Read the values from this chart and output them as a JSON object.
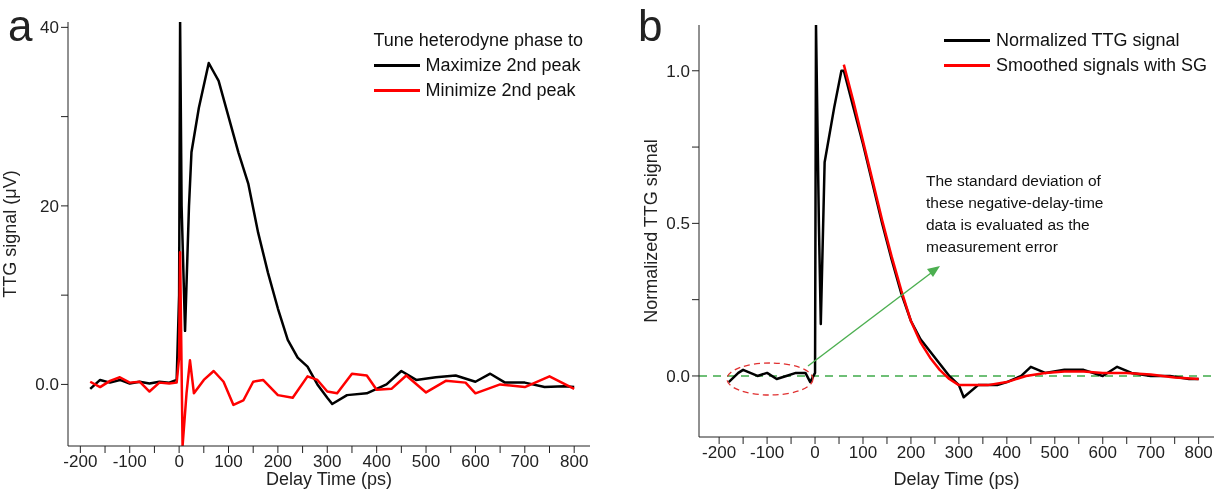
{
  "chart_data": [
    {
      "type": "line",
      "title": "a",
      "xlabel": "Delay Time (ps)",
      "ylabel": "TTG signal (μV)",
      "legend_title": "Tune heterodyne phase to",
      "legend": "top right",
      "xlim": [
        -225,
        832
      ],
      "ylim": [
        -6.9,
        40.6
      ],
      "xticks": [
        -200,
        {
          "value": -150,
          "label": null
        },
        -100,
        {
          "value": -50,
          "label": null
        },
        0,
        {
          "value": 50,
          "label": null
        },
        100,
        {
          "value": 150,
          "label": null
        },
        200,
        {
          "value": 250,
          "label": null
        },
        300,
        {
          "value": 350,
          "label": null
        },
        400,
        {
          "value": 450,
          "label": null
        },
        500,
        {
          "value": 550,
          "label": null
        },
        600,
        {
          "value": 650,
          "label": null
        },
        700,
        {
          "value": 750,
          "label": null
        },
        800
      ],
      "yticks": [
        {
          "value": 0,
          "label": "0.0"
        },
        {
          "value": 10,
          "label": null
        },
        20,
        {
          "value": 30,
          "label": null
        },
        40
      ],
      "series": [
        {
          "name": "Maximize 2nd peak",
          "color": "#000000",
          "x": [
            -180,
            -160,
            -140,
            -120,
            -100,
            -80,
            -60,
            -40,
            -20,
            -5,
            0,
            2,
            5,
            12,
            20,
            25,
            40,
            60,
            70,
            80,
            100,
            120,
            140,
            160,
            180,
            200,
            220,
            240,
            260,
            280,
            300,
            310,
            340,
            380,
            400,
            420,
            450,
            480,
            520,
            560,
            600,
            630,
            660,
            700,
            740,
            780,
            800
          ],
          "values": [
            -0.5,
            0.5,
            0.2,
            0.5,
            0.1,
            0.3,
            0.1,
            0.3,
            0.2,
            0.5,
            10,
            40.6,
            20,
            6,
            20,
            26,
            31,
            36,
            35,
            34,
            30,
            26,
            22.5,
            17,
            12.5,
            8.5,
            5,
            3,
            2,
            0,
            -1.5,
            -2.2,
            -1.2,
            -1,
            -0.5,
            0,
            1.5,
            0.5,
            0.8,
            1,
            0.3,
            1.2,
            0.2,
            0.2,
            -0.3,
            -0.2,
            -0.3
          ]
        },
        {
          "name": "Minimize 2nd peak",
          "color": "#ff0000",
          "x": [
            -180,
            -160,
            -140,
            -120,
            -100,
            -80,
            -60,
            -40,
            -20,
            -5,
            0,
            2,
            7,
            15,
            22,
            30,
            50,
            70,
            90,
            110,
            130,
            150,
            170,
            200,
            230,
            260,
            280,
            300,
            320,
            350,
            380,
            400,
            430,
            460,
            500,
            540,
            580,
            600,
            650,
            700,
            750,
            800
          ],
          "values": [
            0.3,
            -0.3,
            0.4,
            0.8,
            0.2,
            0.3,
            -0.8,
            0.2,
            0.1,
            0.2,
            3,
            14.8,
            -6.9,
            -1,
            2.7,
            -1,
            0.5,
            1.5,
            0.3,
            -2.3,
            -1.8,
            0.3,
            0.5,
            -1.2,
            -1.5,
            0.9,
            0.5,
            -0.8,
            -1,
            1.2,
            1,
            -0.6,
            -0.5,
            1,
            -0.9,
            0.4,
            0.2,
            -1,
            0,
            -0.3,
            0.9,
            -0.5
          ]
        }
      ]
    },
    {
      "type": "line",
      "title": "b",
      "xlabel": "Delay Time (ps)",
      "ylabel": "Normalized TTG signal",
      "legend": "top right",
      "xlim": [
        -242,
        832
      ],
      "ylim": [
        -0.2,
        1.15
      ],
      "xticks": [
        -200,
        {
          "value": -150,
          "label": null
        },
        -100,
        {
          "value": -50,
          "label": null
        },
        0,
        {
          "value": 50,
          "label": null
        },
        100,
        {
          "value": 150,
          "label": null
        },
        200,
        {
          "value": 250,
          "label": null
        },
        300,
        {
          "value": 350,
          "label": null
        },
        400,
        {
          "value": 450,
          "label": null
        },
        500,
        {
          "value": 550,
          "label": null
        },
        600,
        {
          "value": 650,
          "label": null
        },
        700,
        {
          "value": 750,
          "label": null
        },
        800
      ],
      "yticks": [
        {
          "value": 0,
          "label": "0.0"
        },
        {
          "value": 0.25,
          "label": null
        },
        0.5,
        {
          "value": 0.75,
          "label": null
        },
        {
          "value": 1,
          "label": "1.0"
        }
      ],
      "ref_lines": [
        {
          "axis": "y",
          "value": 0,
          "color": "#3faa4a",
          "line_style": "dashed"
        }
      ],
      "annotations": [
        "The standard deviation of these negative-delay-time data is evaluated as the measurement error"
      ],
      "series": [
        {
          "name": "Normalized TTG signal",
          "color": "#000000",
          "x": [
            -180,
            -160,
            -150,
            -120,
            -100,
            -80,
            -60,
            -40,
            -20,
            -10,
            0,
            2,
            8,
            12,
            20,
            40,
            55,
            60,
            80,
            100,
            120,
            140,
            160,
            180,
            200,
            220,
            240,
            260,
            280,
            300,
            310,
            340,
            380,
            400,
            430,
            450,
            480,
            520,
            560,
            600,
            630,
            660,
            700,
            740,
            780,
            800
          ],
          "values": [
            -0.02,
            0.01,
            0.02,
            0,
            0.01,
            -0.01,
            0,
            0.01,
            0.01,
            -0.02,
            0.01,
            1.15,
            0.5,
            0.17,
            0.7,
            0.88,
            1,
            1,
            0.88,
            0.76,
            0.63,
            0.5,
            0.38,
            0.27,
            0.18,
            0.12,
            0.08,
            0.04,
            0,
            -0.03,
            -0.07,
            -0.03,
            -0.03,
            -0.02,
            0,
            0.03,
            0.01,
            0.02,
            0.02,
            0,
            0.03,
            0.01,
            0,
            0,
            -0.01,
            -0.01
          ]
        },
        {
          "name": "Smoothed signals with SG",
          "color": "#ff0000",
          "x": [
            60,
            80,
            100,
            120,
            140,
            160,
            180,
            200,
            220,
            240,
            260,
            280,
            300,
            320,
            360,
            400,
            440,
            480,
            520,
            560,
            600,
            650,
            700,
            750,
            800
          ],
          "values": [
            1.02,
            0.9,
            0.77,
            0.64,
            0.51,
            0.39,
            0.28,
            0.18,
            0.11,
            0.06,
            0.02,
            -0.01,
            -0.03,
            -0.03,
            -0.03,
            -0.02,
            0,
            0.01,
            0.015,
            0.015,
            0.01,
            0.01,
            0.005,
            -0.005,
            -0.01
          ]
        }
      ]
    }
  ]
}
